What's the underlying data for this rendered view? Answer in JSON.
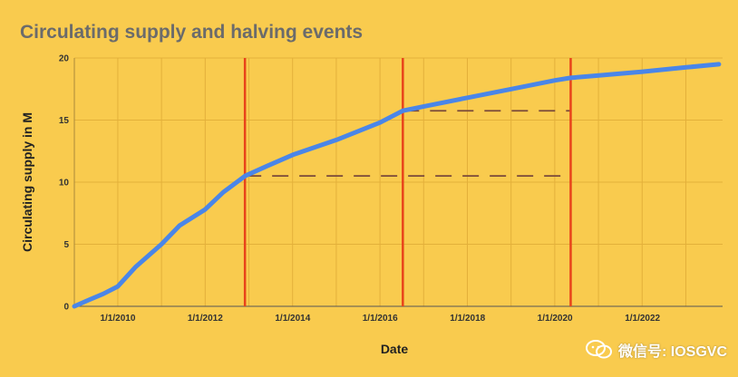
{
  "chart_data": {
    "type": "line",
    "title": "Circulating supply and halving events",
    "xlabel": "Date",
    "ylabel": "Circulating supply in M",
    "xlim": [
      "2009-01-03",
      "2023-11-01"
    ],
    "ylim": [
      0,
      20
    ],
    "x_ticks": [
      "1/1/2010",
      "1/1/2012",
      "1/1/2014",
      "1/1/2016",
      "1/1/2018",
      "1/1/2020",
      "1/1/2022"
    ],
    "y_ticks": [
      0,
      5,
      10,
      15,
      20
    ],
    "grid": true,
    "series": [
      {
        "color": "#4a86e8",
        "points": [
          [
            "2009-01-03",
            0.0
          ],
          [
            "2009-05-01",
            0.5
          ],
          [
            "2009-09-01",
            1.0
          ],
          [
            "2010-01-01",
            1.6
          ],
          [
            "2010-06-01",
            3.2
          ],
          [
            "2011-01-01",
            5.0
          ],
          [
            "2011-06-01",
            6.5
          ],
          [
            "2012-01-01",
            7.8
          ],
          [
            "2012-06-01",
            9.2
          ],
          [
            "2012-11-28",
            10.5
          ],
          [
            "2013-06-01",
            11.3
          ],
          [
            "2014-01-01",
            12.2
          ],
          [
            "2015-01-01",
            13.4
          ],
          [
            "2016-01-01",
            14.8
          ],
          [
            "2016-07-09",
            15.75
          ],
          [
            "2017-01-01",
            16.1
          ],
          [
            "2018-01-01",
            16.8
          ],
          [
            "2019-01-01",
            17.5
          ],
          [
            "2020-01-01",
            18.2
          ],
          [
            "2020-05-11",
            18.4
          ],
          [
            "2021-01-01",
            18.6
          ],
          [
            "2022-01-01",
            18.9
          ],
          [
            "2023-01-01",
            19.25
          ],
          [
            "2023-10-01",
            19.5
          ]
        ]
      }
    ],
    "halving_events": [
      {
        "date": "2012-11-28",
        "supply": 10.5
      },
      {
        "date": "2016-07-09",
        "supply": 15.75
      },
      {
        "date": "2020-05-11",
        "supply": 18.4
      }
    ],
    "reference_lines": [
      {
        "from": "2012-11-28",
        "to": "2020-05-11",
        "y": 10.5
      },
      {
        "from": "2016-07-09",
        "to": "2020-05-11",
        "y": 15.75
      }
    ],
    "colors": {
      "background": "#f9cb4e",
      "line": "#4a86e8",
      "halving": "#e8431a",
      "reference": "#7a4a3a",
      "grid": "#e3b03a"
    }
  },
  "watermark": {
    "text": "微信号: IOSGVC",
    "icon": "wechat-icon"
  }
}
